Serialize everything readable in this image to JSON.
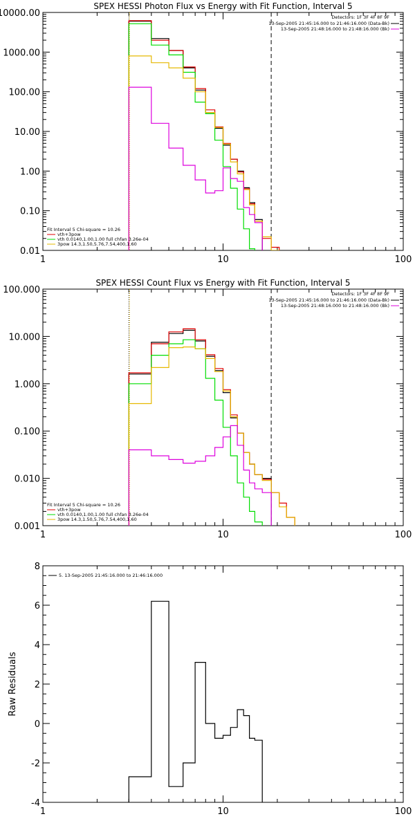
{
  "chart_data": [
    {
      "type": "line",
      "title": "SPEX HESSI Photon Flux vs Energy with Fit Function, Interval 5",
      "yscale": "log",
      "xscale": "log",
      "xlim": [
        1,
        100
      ],
      "ylim": [
        0.01,
        10000
      ],
      "x_ticks": [
        "1",
        "10",
        "100"
      ],
      "y_ticks": [
        "0.01",
        "0.10",
        "1.00",
        "10.00",
        "100.00",
        "1000.00",
        "10000.00"
      ],
      "y_tick_values": [
        0.01,
        0.1,
        1,
        10,
        100,
        1000,
        10000
      ],
      "info": {
        "detectors": "Detectors: 1F 3F 4F 8F 9F",
        "line1": "13-Sep-2005 21:45:16.000 to 21:46:16.000 (Data-Bk)",
        "line2": "13-Sep-2005 21:48:16.000 to 21:48:16.000 (Bk)"
      },
      "fit_label": "Fit Interval 5   Chi-square = 10.26",
      "fit_legend": [
        {
          "label": "vth+3pow",
          "color": "#e00000"
        },
        {
          "label": "vth 0.0140,1.00,1.00  full chfan 3.26e-04",
          "color": "#00dd00"
        },
        {
          "label": "3pow 14.3,1.50,5.76,7.54,400,1.60",
          "color": "#e6b800"
        }
      ],
      "markers": {
        "dotted": 3,
        "dashed": 18.5
      },
      "bin_edges": [
        3.0,
        4.0,
        5.0,
        6.0,
        7.0,
        8.0,
        9.0,
        10.0,
        11.0,
        12.0,
        13.0,
        14.0,
        15.0,
        16.5,
        18.5,
        20.5,
        22.5
      ],
      "series": [
        {
          "name": "Data-Bk",
          "color": "#000000",
          "values": [
            6000,
            2200,
            1100,
            400,
            110,
            30,
            12,
            4.5,
            2.0,
            1.0,
            0.38,
            0.16,
            0.06,
            null,
            null,
            null
          ]
        },
        {
          "name": "vth+3pow",
          "color": "#e00000",
          "values": [
            6200,
            2000,
            1100,
            420,
            120,
            35,
            13,
            5.0,
            2.0,
            0.95,
            0.36,
            0.15,
            0.055,
            0.02,
            0.012,
            null
          ]
        },
        {
          "name": "vth",
          "color": "#00dd00",
          "values": [
            5200,
            1500,
            850,
            310,
            55,
            28,
            6.0,
            1.3,
            0.37,
            0.11,
            0.035,
            0.011,
            null,
            null,
            null,
            null
          ]
        },
        {
          "name": "3pow",
          "color": "#e6b800",
          "values": [
            800,
            540,
            400,
            220,
            100,
            30,
            12.5,
            4.8,
            1.7,
            0.85,
            0.34,
            0.14,
            0.055,
            0.022,
            0.01,
            null
          ]
        },
        {
          "name": "Bk",
          "color": "#dd00dd",
          "values": [
            130,
            16,
            3.8,
            1.4,
            0.6,
            0.28,
            0.32,
            1.2,
            0.65,
            0.55,
            0.12,
            0.08,
            0.05,
            0.008,
            null,
            null
          ]
        }
      ]
    },
    {
      "type": "line",
      "title": "SPEX HESSI Count Flux vs Energy with Fit Function, Interval 5",
      "yscale": "log",
      "xscale": "log",
      "xlim": [
        1,
        100
      ],
      "ylim": [
        0.001,
        100
      ],
      "x_ticks": [
        "1",
        "10",
        "100"
      ],
      "y_ticks": [
        "0.001",
        "0.010",
        "0.100",
        "1.000",
        "10.000",
        "100.000"
      ],
      "y_tick_values": [
        0.001,
        0.01,
        0.1,
        1,
        10,
        100
      ],
      "info": {
        "detectors": "Detectors: 1F 3F 4F 8F 9F",
        "line1": "13-Sep-2005 21:45:16.000 to 21:46:16.000 (Data-Bk)",
        "line2": "13-Sep-2005 21:48:16.000 to 21:48:16.000 (Bk)"
      },
      "fit_label": "Fit Interval 5   Chi-square = 10.26",
      "fit_legend": [
        {
          "label": "vth+3pow",
          "color": "#e00000"
        },
        {
          "label": "vth 0.0140,1.00,1.00  full chfan 3.26e-04",
          "color": "#00dd00"
        },
        {
          "label": "3pow 14.3,1.50,5.76,7.54,400,1.60",
          "color": "#e6b800"
        }
      ],
      "markers": {
        "dotted": 3,
        "dashed": 18.5
      },
      "bin_edges": [
        3.0,
        4.0,
        5.0,
        6.0,
        7.0,
        8.0,
        9.0,
        10.0,
        11.0,
        12.0,
        13.0,
        14.0,
        15.0,
        16.5,
        18.5,
        20.5,
        22.5,
        25.0
      ],
      "series": [
        {
          "name": "Data-Bk",
          "color": "#000000",
          "values": [
            1.6,
            7.5,
            11.5,
            13.5,
            8.0,
            3.8,
            1.9,
            0.65,
            0.19,
            0.09,
            0.035,
            0.02,
            0.012,
            0.01,
            null,
            null,
            null
          ]
        },
        {
          "name": "vth+3pow",
          "color": "#e00000",
          "values": [
            1.7,
            7.0,
            12.5,
            14.5,
            8.5,
            4.1,
            2.1,
            0.75,
            0.22,
            0.09,
            0.035,
            0.02,
            0.012,
            0.0095,
            0.005,
            0.003,
            0.0015
          ]
        },
        {
          "name": "vth",
          "color": "#00dd00",
          "values": [
            1.0,
            4.0,
            7.0,
            8.5,
            5.5,
            1.3,
            0.45,
            0.12,
            0.03,
            0.008,
            0.004,
            0.002,
            0.0012,
            null,
            null,
            null,
            null
          ]
        },
        {
          "name": "3pow",
          "color": "#e6b800",
          "values": [
            0.38,
            2.2,
            5.8,
            6.0,
            5.5,
            3.4,
            1.8,
            0.7,
            0.2,
            0.09,
            0.035,
            0.02,
            0.012,
            0.009,
            0.005,
            0.0025,
            0.0015
          ]
        },
        {
          "name": "Bk",
          "color": "#dd00dd",
          "values": [
            0.04,
            0.03,
            0.025,
            0.021,
            0.023,
            0.03,
            0.045,
            0.075,
            0.13,
            0.05,
            0.015,
            0.008,
            0.006,
            0.005,
            null,
            null,
            null
          ]
        }
      ]
    },
    {
      "type": "line",
      "title": "",
      "ylabel": "Raw Residuals",
      "xscale": "log",
      "yscale": "linear",
      "xlim": [
        1,
        100
      ],
      "ylim": [
        -4,
        8
      ],
      "x_ticks": [
        "1",
        "10",
        "100"
      ],
      "y_ticks": [
        "-4",
        "-2",
        "0",
        "2",
        "4",
        "6",
        "8"
      ],
      "y_tick_values": [
        -4,
        -2,
        0,
        2,
        4,
        6,
        8
      ],
      "legend_text": "5. 13-Sep-2005 21:45:16.000 to 21:46:16.000",
      "bin_edges": [
        3.0,
        4.0,
        5.0,
        6.0,
        7.0,
        8.0,
        9.0,
        10.0,
        11.0,
        12.0,
        13.0,
        14.0,
        15.0,
        16.5,
        18.5
      ],
      "series": [
        {
          "name": "5. 13-Sep-2005 21:45:16.000 to 21:46:16.000",
          "color": "#000000",
          "values": [
            -2.7,
            6.2,
            -3.2,
            -2.0,
            3.1,
            0.0,
            -0.75,
            -0.6,
            -0.2,
            0.7,
            0.4,
            -0.75,
            -0.85
          ]
        }
      ]
    }
  ]
}
